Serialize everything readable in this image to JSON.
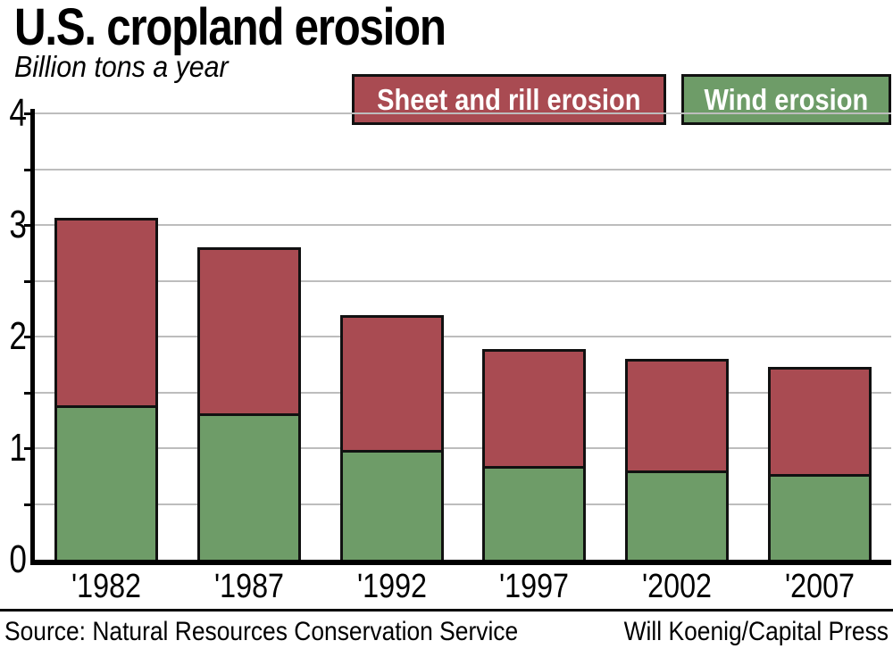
{
  "title": "U.S. cropland erosion",
  "subtitle": "Billion tons a year",
  "legend": [
    {
      "label": "Sheet and rill erosion",
      "color": "#a94b52"
    },
    {
      "label": "Wind erosion",
      "color": "#6e9c68"
    }
  ],
  "footer": {
    "source": "Source: Natural Resources Conservation Service",
    "credit": "Will Koenig/Capital Press"
  },
  "colors": {
    "sheet_rill": "#a94b52",
    "wind": "#6e9c68",
    "bar_outline": "#111111",
    "gridline": "#bdbdbd",
    "axis": "#000000"
  },
  "chart_data": {
    "type": "bar",
    "stacked": true,
    "title": "U.S. cropland erosion",
    "ylabel": "Billion tons a year",
    "categories": [
      "'1982",
      "'1987",
      "'1992",
      "'1997",
      "'2002",
      "'2007"
    ],
    "series": [
      {
        "name": "Wind erosion",
        "color": "#6e9c68",
        "values": [
          1.38,
          1.31,
          0.98,
          0.84,
          0.8,
          0.77
        ]
      },
      {
        "name": "Sheet and rill erosion",
        "color": "#a94b52",
        "values": [
          1.68,
          1.49,
          1.21,
          1.05,
          1.0,
          0.96
        ]
      }
    ],
    "ylim": [
      0,
      4
    ],
    "yticks": [
      0,
      1,
      2,
      3,
      4
    ],
    "gridline_step": 0.5,
    "grid": true,
    "legend_position": "top-right"
  }
}
